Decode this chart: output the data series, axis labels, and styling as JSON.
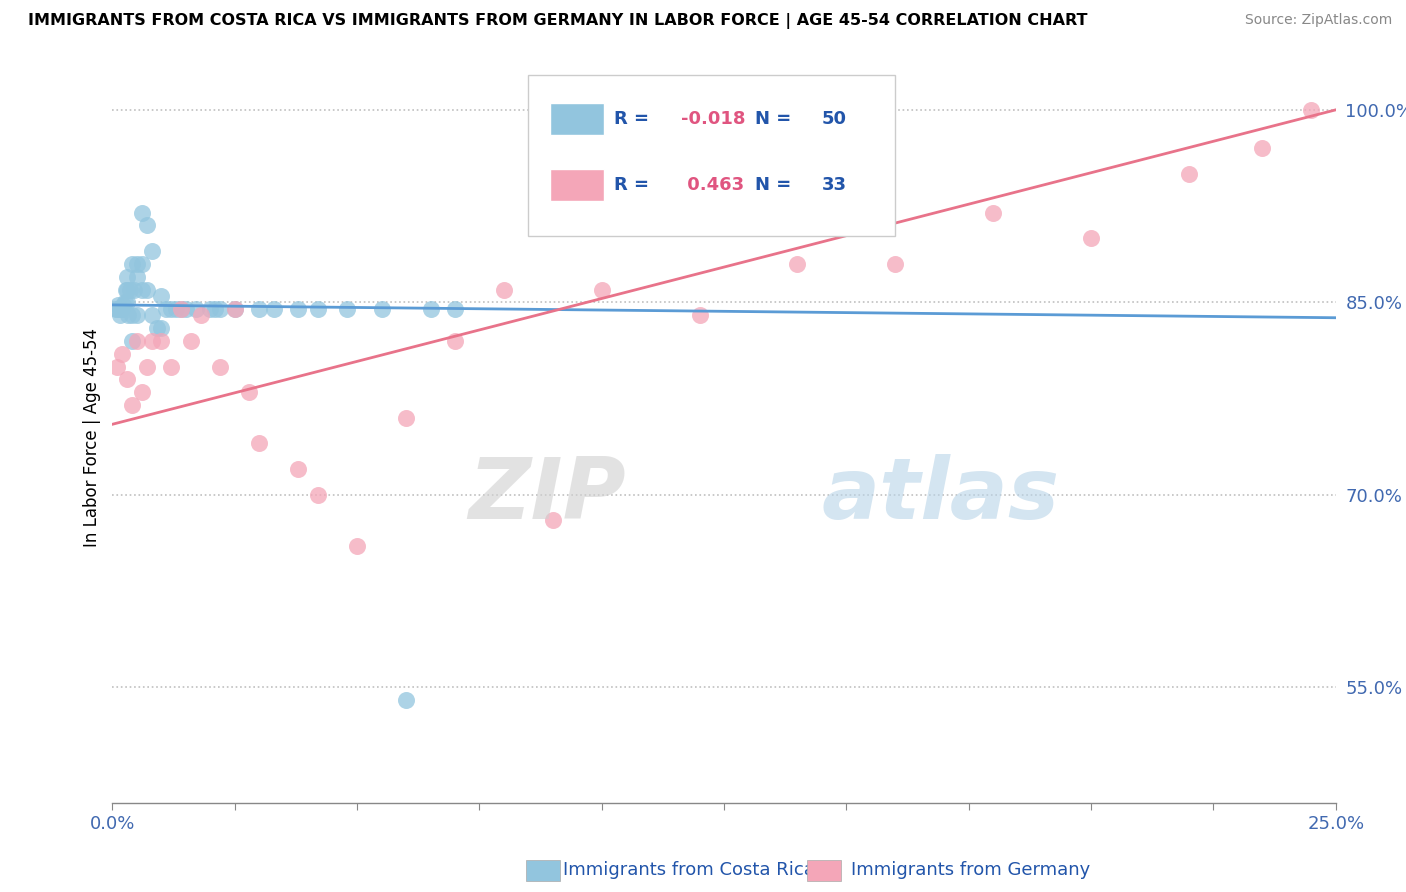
{
  "title": "IMMIGRANTS FROM COSTA RICA VS IMMIGRANTS FROM GERMANY IN LABOR FORCE | AGE 45-54 CORRELATION CHART",
  "source": "Source: ZipAtlas.com",
  "ylabel": "In Labor Force | Age 45-54",
  "xlim": [
    0.0,
    0.25
  ],
  "ylim": [
    0.46,
    1.03
  ],
  "xticks": [
    0.0,
    0.025,
    0.05,
    0.075,
    0.1,
    0.125,
    0.15,
    0.175,
    0.2,
    0.225,
    0.25
  ],
  "xticklabels_show": {
    "0.0": "0.0%",
    "0.25": "25.0%"
  },
  "ytick_positions": [
    0.55,
    0.7,
    0.85,
    1.0
  ],
  "ytick_labels": [
    "55.0%",
    "70.0%",
    "85.0%",
    "100.0%"
  ],
  "legend_blue_r": "-0.018",
  "legend_blue_n": "50",
  "legend_pink_r": "0.463",
  "legend_pink_n": "33",
  "legend_label_blue": "Immigrants from Costa Rica",
  "legend_label_pink": "Immigrants from Germany",
  "blue_color": "#92c5de",
  "pink_color": "#f4a6b8",
  "blue_line_color": "#5b9bd5",
  "pink_line_color": "#e8738a",
  "blue_scatter_x": [
    0.0008,
    0.001,
    0.0012,
    0.0015,
    0.0018,
    0.002,
    0.0022,
    0.0025,
    0.0028,
    0.003,
    0.003,
    0.003,
    0.0032,
    0.0035,
    0.004,
    0.004,
    0.004,
    0.0045,
    0.005,
    0.005,
    0.005,
    0.006,
    0.006,
    0.006,
    0.007,
    0.007,
    0.008,
    0.008,
    0.009,
    0.01,
    0.01,
    0.011,
    0.012,
    0.013,
    0.014,
    0.015,
    0.017,
    0.02,
    0.021,
    0.022,
    0.025,
    0.03,
    0.033,
    0.038,
    0.042,
    0.048,
    0.055,
    0.06,
    0.065,
    0.07
  ],
  "blue_scatter_y": [
    0.845,
    0.845,
    0.848,
    0.84,
    0.845,
    0.845,
    0.848,
    0.85,
    0.86,
    0.87,
    0.85,
    0.86,
    0.84,
    0.86,
    0.88,
    0.82,
    0.84,
    0.86,
    0.87,
    0.84,
    0.88,
    0.86,
    0.88,
    0.92,
    0.91,
    0.86,
    0.84,
    0.89,
    0.83,
    0.83,
    0.855,
    0.845,
    0.845,
    0.845,
    0.845,
    0.845,
    0.845,
    0.845,
    0.845,
    0.845,
    0.845,
    0.845,
    0.845,
    0.845,
    0.845,
    0.845,
    0.845,
    0.54,
    0.845,
    0.845
  ],
  "pink_scatter_x": [
    0.001,
    0.002,
    0.003,
    0.004,
    0.005,
    0.006,
    0.007,
    0.008,
    0.01,
    0.012,
    0.014,
    0.016,
    0.018,
    0.022,
    0.025,
    0.028,
    0.03,
    0.038,
    0.042,
    0.05,
    0.06,
    0.07,
    0.08,
    0.09,
    0.1,
    0.12,
    0.14,
    0.16,
    0.18,
    0.2,
    0.22,
    0.235,
    0.245
  ],
  "pink_scatter_y": [
    0.8,
    0.81,
    0.79,
    0.77,
    0.82,
    0.78,
    0.8,
    0.82,
    0.82,
    0.8,
    0.845,
    0.82,
    0.84,
    0.8,
    0.845,
    0.78,
    0.74,
    0.72,
    0.7,
    0.66,
    0.76,
    0.82,
    0.86,
    0.68,
    0.86,
    0.84,
    0.88,
    0.88,
    0.92,
    0.9,
    0.95,
    0.97,
    1.0
  ],
  "blue_trend_x": [
    0.0,
    0.25
  ],
  "blue_trend_y": [
    0.848,
    0.838
  ],
  "pink_trend_x": [
    0.0,
    0.25
  ],
  "pink_trend_y": [
    0.755,
    1.0
  ]
}
